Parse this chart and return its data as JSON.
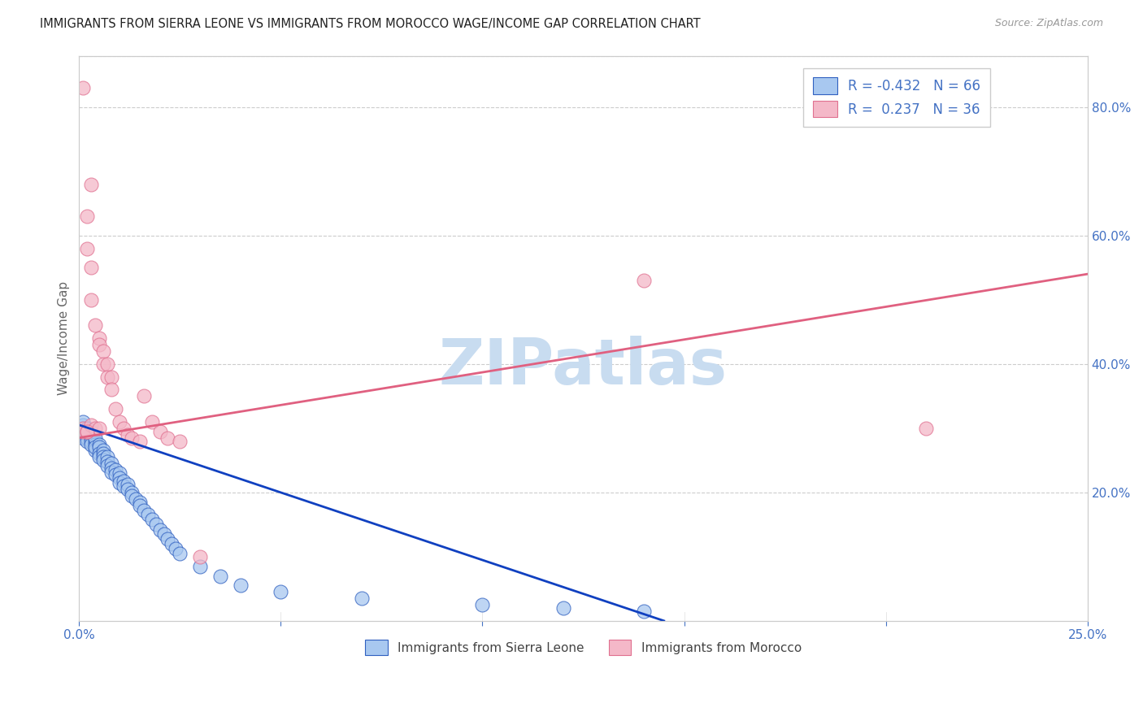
{
  "title": "IMMIGRANTS FROM SIERRA LEONE VS IMMIGRANTS FROM MOROCCO WAGE/INCOME GAP CORRELATION CHART",
  "source": "Source: ZipAtlas.com",
  "ylabel": "Wage/Income Gap",
  "R_blue": -0.432,
  "N_blue": 66,
  "R_pink": 0.237,
  "N_pink": 36,
  "blue_fill": "#A8C8F0",
  "pink_fill": "#F4B8C8",
  "blue_edge": "#3060C0",
  "pink_edge": "#E07090",
  "blue_line_color": "#1040C0",
  "pink_line_color": "#E06080",
  "axis_color": "#4472C4",
  "watermark_color": "#C8DCF0",
  "background_color": "#FFFFFF",
  "xlim": [
    0.0,
    0.25
  ],
  "ylim": [
    0.0,
    0.88
  ],
  "blue_x": [
    0.001,
    0.001,
    0.001,
    0.001,
    0.001,
    0.002,
    0.002,
    0.002,
    0.002,
    0.002,
    0.003,
    0.003,
    0.003,
    0.003,
    0.003,
    0.004,
    0.004,
    0.004,
    0.004,
    0.004,
    0.005,
    0.005,
    0.005,
    0.005,
    0.006,
    0.006,
    0.006,
    0.006,
    0.007,
    0.007,
    0.007,
    0.008,
    0.008,
    0.008,
    0.009,
    0.009,
    0.01,
    0.01,
    0.01,
    0.011,
    0.011,
    0.012,
    0.012,
    0.013,
    0.013,
    0.014,
    0.015,
    0.015,
    0.016,
    0.017,
    0.018,
    0.019,
    0.02,
    0.021,
    0.022,
    0.023,
    0.024,
    0.025,
    0.03,
    0.035,
    0.04,
    0.05,
    0.07,
    0.1,
    0.12,
    0.14
  ],
  "blue_y": [
    0.295,
    0.3,
    0.305,
    0.285,
    0.31,
    0.29,
    0.295,
    0.3,
    0.285,
    0.28,
    0.285,
    0.29,
    0.295,
    0.28,
    0.275,
    0.28,
    0.275,
    0.285,
    0.265,
    0.27,
    0.275,
    0.27,
    0.26,
    0.255,
    0.265,
    0.26,
    0.255,
    0.25,
    0.255,
    0.248,
    0.242,
    0.245,
    0.238,
    0.232,
    0.235,
    0.228,
    0.23,
    0.222,
    0.215,
    0.218,
    0.21,
    0.212,
    0.205,
    0.2,
    0.195,
    0.19,
    0.185,
    0.18,
    0.172,
    0.165,
    0.158,
    0.15,
    0.142,
    0.135,
    0.128,
    0.12,
    0.112,
    0.105,
    0.085,
    0.07,
    0.055,
    0.045,
    0.035,
    0.025,
    0.02,
    0.015
  ],
  "pink_x": [
    0.001,
    0.001,
    0.001,
    0.002,
    0.002,
    0.002,
    0.003,
    0.003,
    0.003,
    0.004,
    0.004,
    0.005,
    0.005,
    0.005,
    0.006,
    0.006,
    0.007,
    0.007,
    0.008,
    0.008,
    0.009,
    0.01,
    0.011,
    0.012,
    0.013,
    0.015,
    0.016,
    0.018,
    0.02,
    0.022,
    0.025,
    0.03,
    0.14,
    0.21,
    0.003,
    0.002
  ],
  "pink_y": [
    0.83,
    0.3,
    0.295,
    0.63,
    0.295,
    0.58,
    0.68,
    0.55,
    0.305,
    0.46,
    0.3,
    0.44,
    0.3,
    0.43,
    0.42,
    0.4,
    0.4,
    0.38,
    0.38,
    0.36,
    0.33,
    0.31,
    0.3,
    0.29,
    0.285,
    0.28,
    0.35,
    0.31,
    0.295,
    0.285,
    0.28,
    0.1,
    0.53,
    0.3,
    0.5,
    0.295
  ],
  "blue_line_x0": 0.0,
  "blue_line_y0": 0.305,
  "blue_line_x1": 0.145,
  "blue_line_y1": 0.0,
  "pink_line_x0": 0.0,
  "pink_line_y0": 0.285,
  "pink_line_x1": 0.25,
  "pink_line_y1": 0.54
}
